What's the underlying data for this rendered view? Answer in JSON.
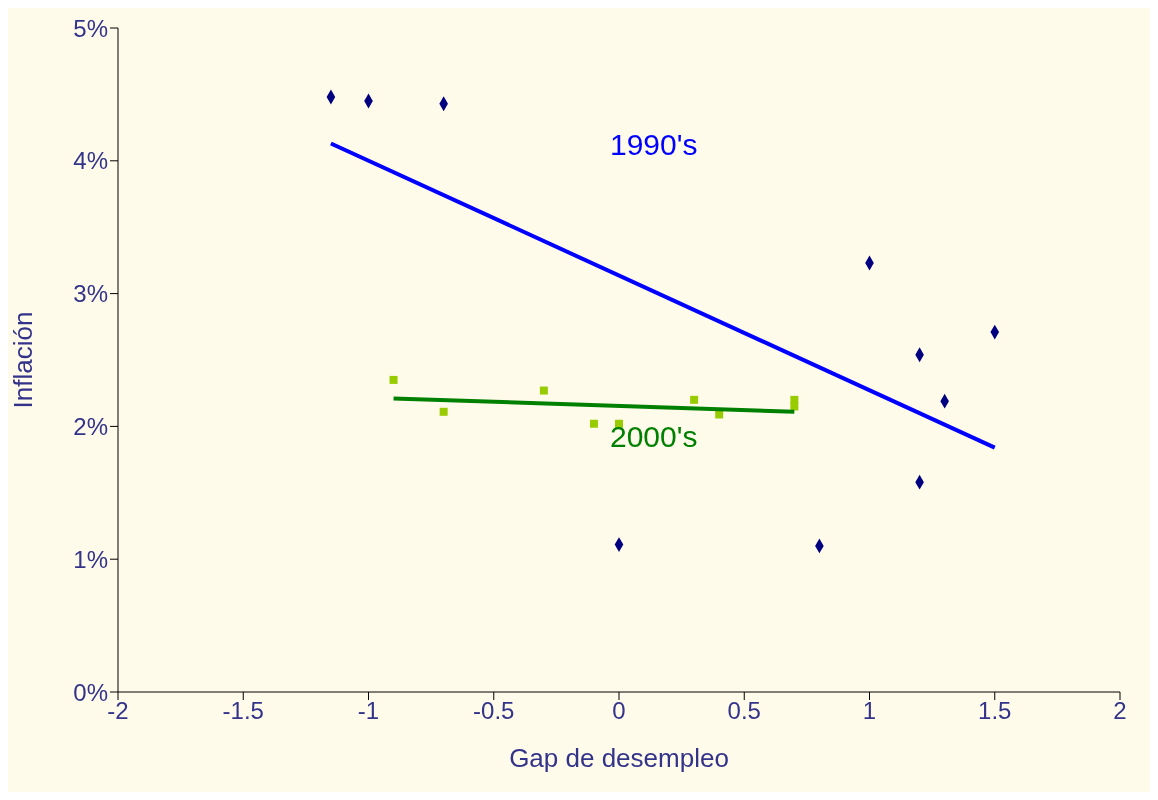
{
  "chart_data": {
    "type": "scatter",
    "xlabel": "Gap de desempleo",
    "ylabel": "Inflación",
    "xlim": [
      -2,
      2
    ],
    "xticks": [
      -2,
      -1.5,
      -1,
      -0.5,
      0,
      0.5,
      1,
      1.5,
      2
    ],
    "ylim": [
      0,
      5
    ],
    "yticks": [
      {
        "value": 0,
        "label": "0%"
      },
      {
        "value": 1,
        "label": "1%"
      },
      {
        "value": 2,
        "label": "2%"
      },
      {
        "value": 3,
        "label": "3%"
      },
      {
        "value": 4,
        "label": "4%"
      },
      {
        "value": 5,
        "label": "5%"
      }
    ],
    "grid": false,
    "legend": false,
    "series": [
      {
        "marker": "diamond",
        "color": "#000080",
        "x": [
          -1.15,
          -1.0,
          -0.7,
          1.0,
          1.2,
          1.5,
          1.3,
          1.2,
          0,
          0.8
        ],
        "values": [
          4.48,
          4.45,
          4.43,
          3.23,
          2.54,
          2.71,
          2.19,
          1.58,
          1.11,
          1.1
        ]
      },
      {
        "marker": "square",
        "color": "#99cc00",
        "x": [
          -0.9,
          -0.7,
          -0.3,
          -0.1,
          0,
          0.3,
          0.4,
          0.7,
          0.7
        ],
        "values": [
          2.35,
          2.11,
          2.27,
          2.02,
          2.02,
          2.2,
          2.09,
          2.2,
          2.15
        ]
      },
      {
        "type": "line",
        "color": "#0000ff",
        "x": [
          -1.15,
          1.5
        ],
        "values": [
          4.13,
          1.84
        ]
      },
      {
        "type": "line",
        "color": "#008000",
        "x": [
          -0.9,
          0.7
        ],
        "values": [
          2.21,
          2.11
        ]
      }
    ],
    "annotations": [
      "1990's",
      "2000's"
    ]
  }
}
